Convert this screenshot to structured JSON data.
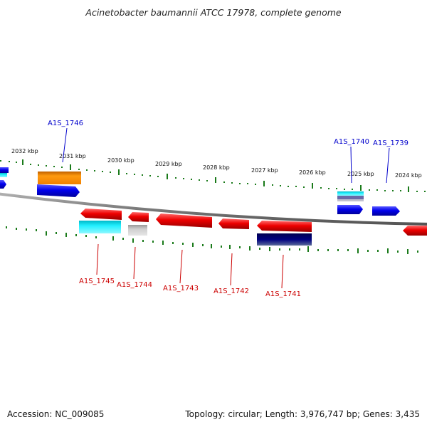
{
  "title": "Acinetobacter baumannii ATCC 17978, complete genome",
  "footer": {
    "accession": "Accession: NC_009085",
    "summary": "Topology: circular; Length: 3,976,747 bp; Genes: 3,435"
  },
  "colors": {
    "forward_label": "#0000cc",
    "reverse_label": "#cc0000",
    "tick": "#1a7a1a",
    "backbone": "#888888"
  },
  "scale_labels": [
    "2032 kbp",
    "2031 kbp",
    "2030 kbp",
    "2029 kbp",
    "2028 kbp",
    "2027 kbp",
    "2026 kbp",
    "2025 kbp",
    "2024 kbp"
  ],
  "gene_labels": {
    "forward": [
      "A1S_1746",
      "A1S_1740",
      "A1S_1739"
    ],
    "reverse": [
      "A1S_1745",
      "A1S_1744",
      "A1S_1743",
      "A1S_1742",
      "A1S_1741"
    ]
  }
}
